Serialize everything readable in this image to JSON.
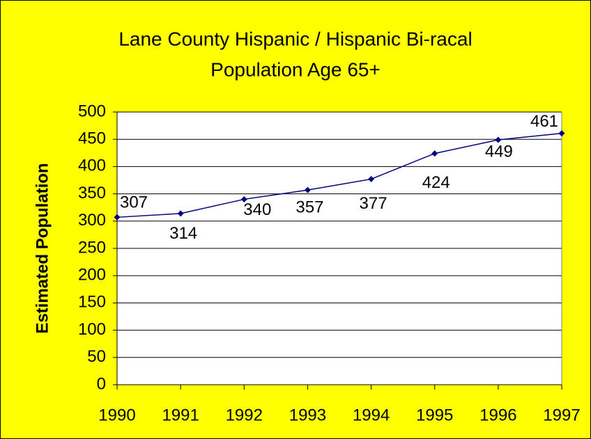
{
  "chart_data": {
    "type": "line",
    "title": [
      "Lane County Hispanic / Hispanic Bi-racal",
      "Population Age 65+"
    ],
    "y_label": "Estimated Population",
    "categories": [
      "1990",
      "1991",
      "1992",
      "1993",
      "1994",
      "1995",
      "1996",
      "1997"
    ],
    "series": [
      {
        "name": "Population",
        "color": "#000080",
        "values": [
          307,
          314,
          340,
          357,
          377,
          424,
          449,
          461
        ]
      }
    ],
    "ylim": [
      0,
      500
    ],
    "yticks": [
      0,
      50,
      100,
      150,
      200,
      250,
      300,
      350,
      400,
      450,
      500
    ],
    "grid": true
  }
}
